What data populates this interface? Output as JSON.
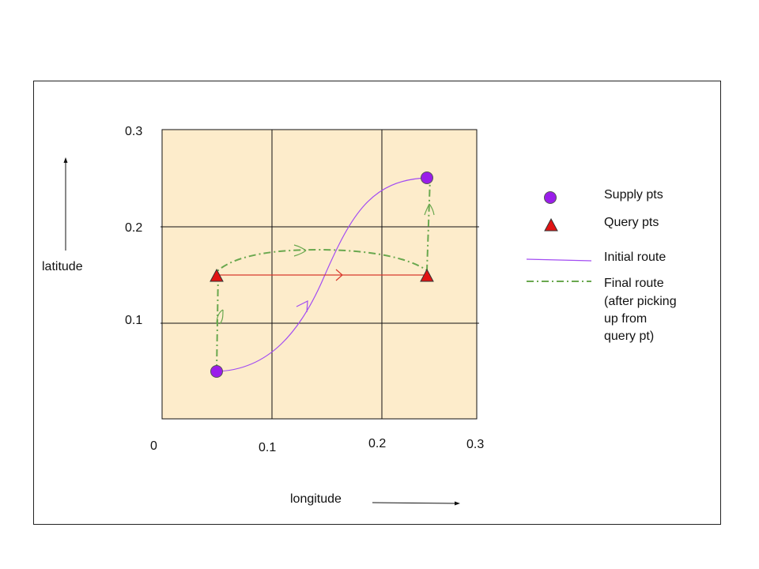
{
  "axes": {
    "x_label": "longitude",
    "y_label": "latitude",
    "x_ticks": [
      "0",
      "0.1",
      "0.2",
      "0.3"
    ],
    "y_ticks": [
      "0.1",
      "0.2",
      "0.3"
    ]
  },
  "points": {
    "supply": [
      {
        "lon": 0.05,
        "lat": 0.05
      },
      {
        "lon": 0.245,
        "lat": 0.25
      }
    ],
    "query": [
      {
        "lon": 0.05,
        "lat": 0.15
      },
      {
        "lon": 0.245,
        "lat": 0.15
      }
    ]
  },
  "legend": {
    "supply": "Supply pts",
    "query": "Query pts",
    "initial": "Initial route",
    "final_lines": [
      "Final route",
      "(after picking",
      "up from",
      "query pt)"
    ]
  },
  "colors": {
    "grid_fill": "#fdeccb",
    "supply": "#9a1dea",
    "query": "#e11313",
    "initial_route": "#a24cf2",
    "query_link": "#d93a2e",
    "final_route": "#6aa84f"
  }
}
